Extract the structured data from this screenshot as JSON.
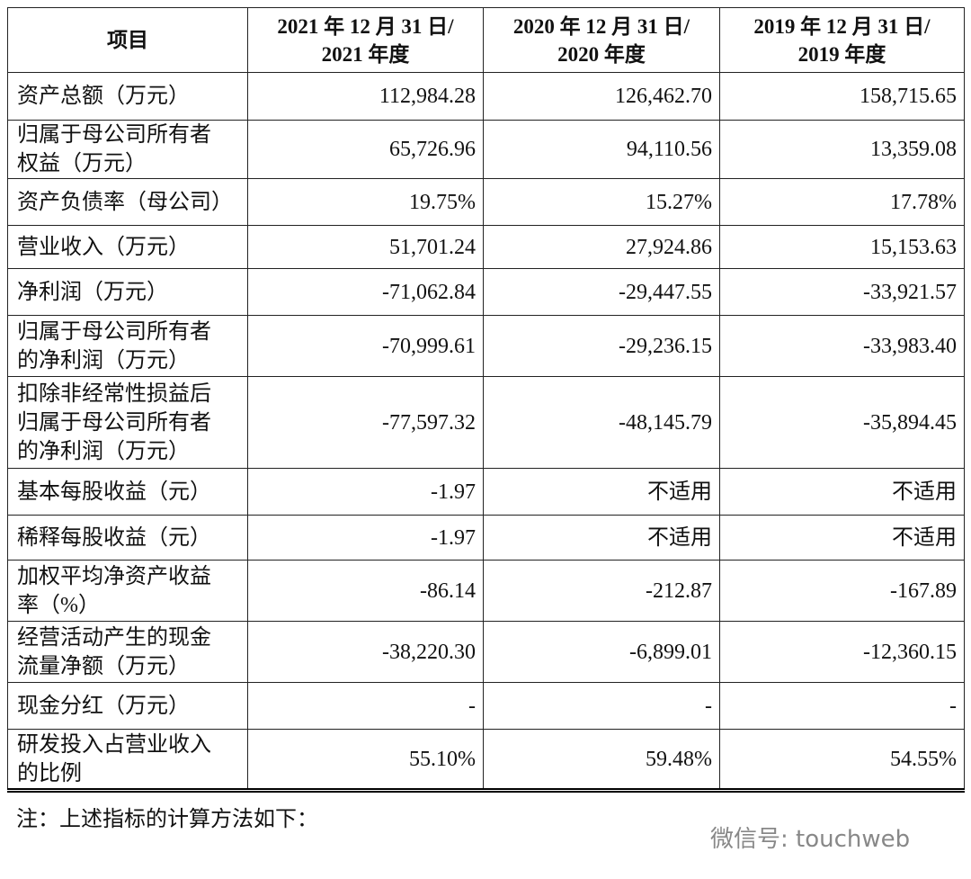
{
  "table": {
    "header": [
      "项目",
      [
        "2021 年 12 月 31 日/",
        "2021 年度"
      ],
      [
        "2020 年 12 月 31 日/",
        "2020 年度"
      ],
      [
        "2019 年 12 月 31 日/",
        "2019 年度"
      ]
    ],
    "rows": [
      [
        [
          "资产总额（万元）"
        ],
        "112,984.28",
        "126,462.70",
        "158,715.65"
      ],
      [
        [
          "归属于母公司所有者",
          "权益（万元）"
        ],
        "65,726.96",
        "94,110.56",
        "13,359.08"
      ],
      [
        [
          "资产负债率（母公司）"
        ],
        "19.75%",
        "15.27%",
        "17.78%"
      ],
      [
        [
          "营业收入（万元）"
        ],
        "51,701.24",
        "27,924.86",
        "15,153.63"
      ],
      [
        [
          "净利润（万元）"
        ],
        "-71,062.84",
        "-29,447.55",
        "-33,921.57"
      ],
      [
        [
          "归属于母公司所有者",
          "的净利润（万元）"
        ],
        "-70,999.61",
        "-29,236.15",
        "-33,983.40"
      ],
      [
        [
          "扣除非经常性损益后",
          "归属于母公司所有者",
          "的净利润（万元）"
        ],
        "-77,597.32",
        "-48,145.79",
        "-35,894.45"
      ],
      [
        [
          "基本每股收益（元）"
        ],
        "-1.97",
        "不适用",
        "不适用"
      ],
      [
        [
          "稀释每股收益（元）"
        ],
        "-1.97",
        "不适用",
        "不适用"
      ],
      [
        [
          "加权平均净资产收益",
          "率（%）"
        ],
        "-86.14",
        "-212.87",
        "-167.89"
      ],
      [
        [
          "经营活动产生的现金",
          "流量净额（万元）"
        ],
        "-38,220.30",
        "-6,899.01",
        "-12,360.15"
      ],
      [
        [
          "现金分红（万元）"
        ],
        "-",
        "-",
        "-"
      ],
      [
        [
          "研发投入占营业收入",
          "的比例"
        ],
        "55.10%",
        "59.48%",
        "54.55%"
      ]
    ]
  },
  "note": "注：上述指标的计算方法如下：",
  "watermark": "微信号: touchweb"
}
